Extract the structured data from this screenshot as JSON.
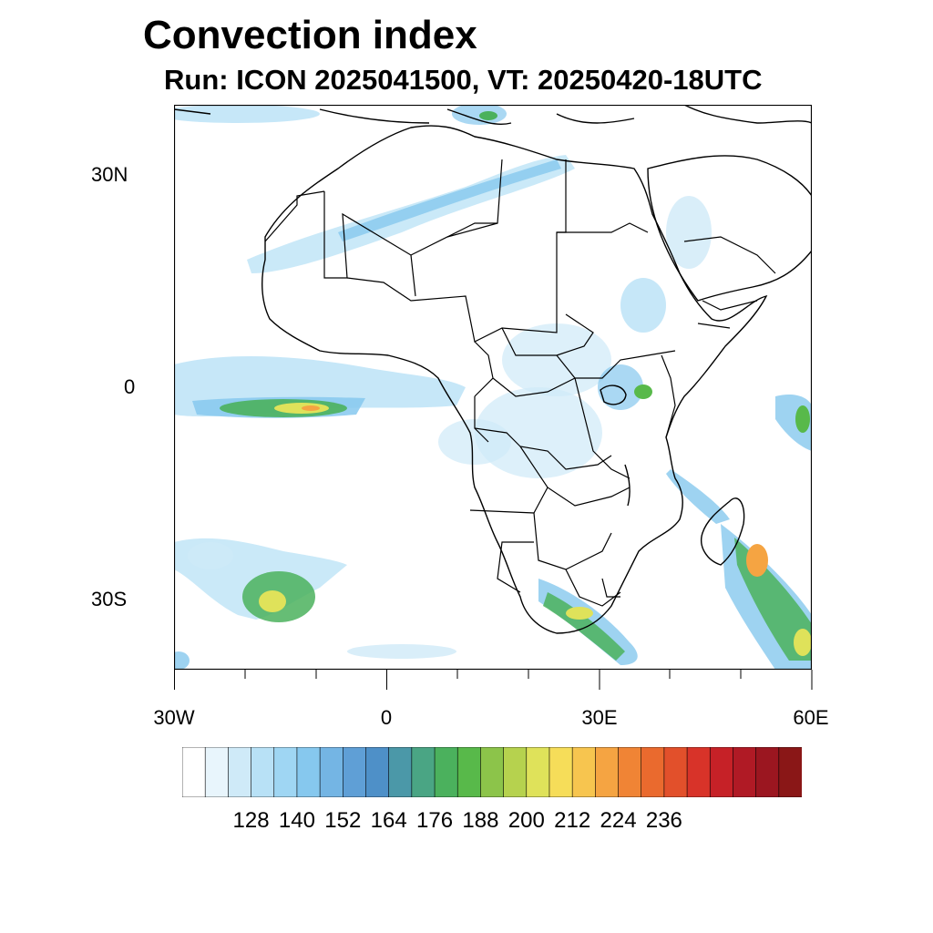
{
  "title": "Convection index",
  "subtitle": "Run: ICON 2025041500,  VT: 20250420-18UTC",
  "map": {
    "lon_range": [
      -30,
      60
    ],
    "lat_range": [
      -40,
      40
    ],
    "y_ticks": [
      {
        "lat": 30,
        "label": "30N"
      },
      {
        "lat": 0,
        "label": "0"
      },
      {
        "lat": -30,
        "label": "30S"
      }
    ],
    "x_ticks": [
      {
        "lon": -30,
        "label": "30W"
      },
      {
        "lon": 0,
        "label": "0"
      },
      {
        "lon": 30,
        "label": "30E"
      },
      {
        "lon": 60,
        "label": "60E"
      }
    ]
  },
  "colorbar": {
    "colors": [
      "#ffffff",
      "#e8f5fc",
      "#cfeaf8",
      "#b8e1f6",
      "#9fd6f3",
      "#86c8ee",
      "#74b5e4",
      "#5f9fd6",
      "#4e90c8",
      "#4b98a8",
      "#4aa584",
      "#4bb15d",
      "#58b94a",
      "#8cc44a",
      "#b6d24e",
      "#dfe25a",
      "#f6dd59",
      "#f7c54f",
      "#f5a442",
      "#f08435",
      "#ea6a2e",
      "#e2502b",
      "#d83329",
      "#c62127",
      "#b01a25",
      "#9b1620",
      "#8a1717"
    ],
    "labels": [
      "128",
      "140",
      "152",
      "164",
      "176",
      "188",
      "200",
      "212",
      "224",
      "236"
    ]
  },
  "legend_colors": {
    "frame": "#000000",
    "land": "#ffffff"
  }
}
